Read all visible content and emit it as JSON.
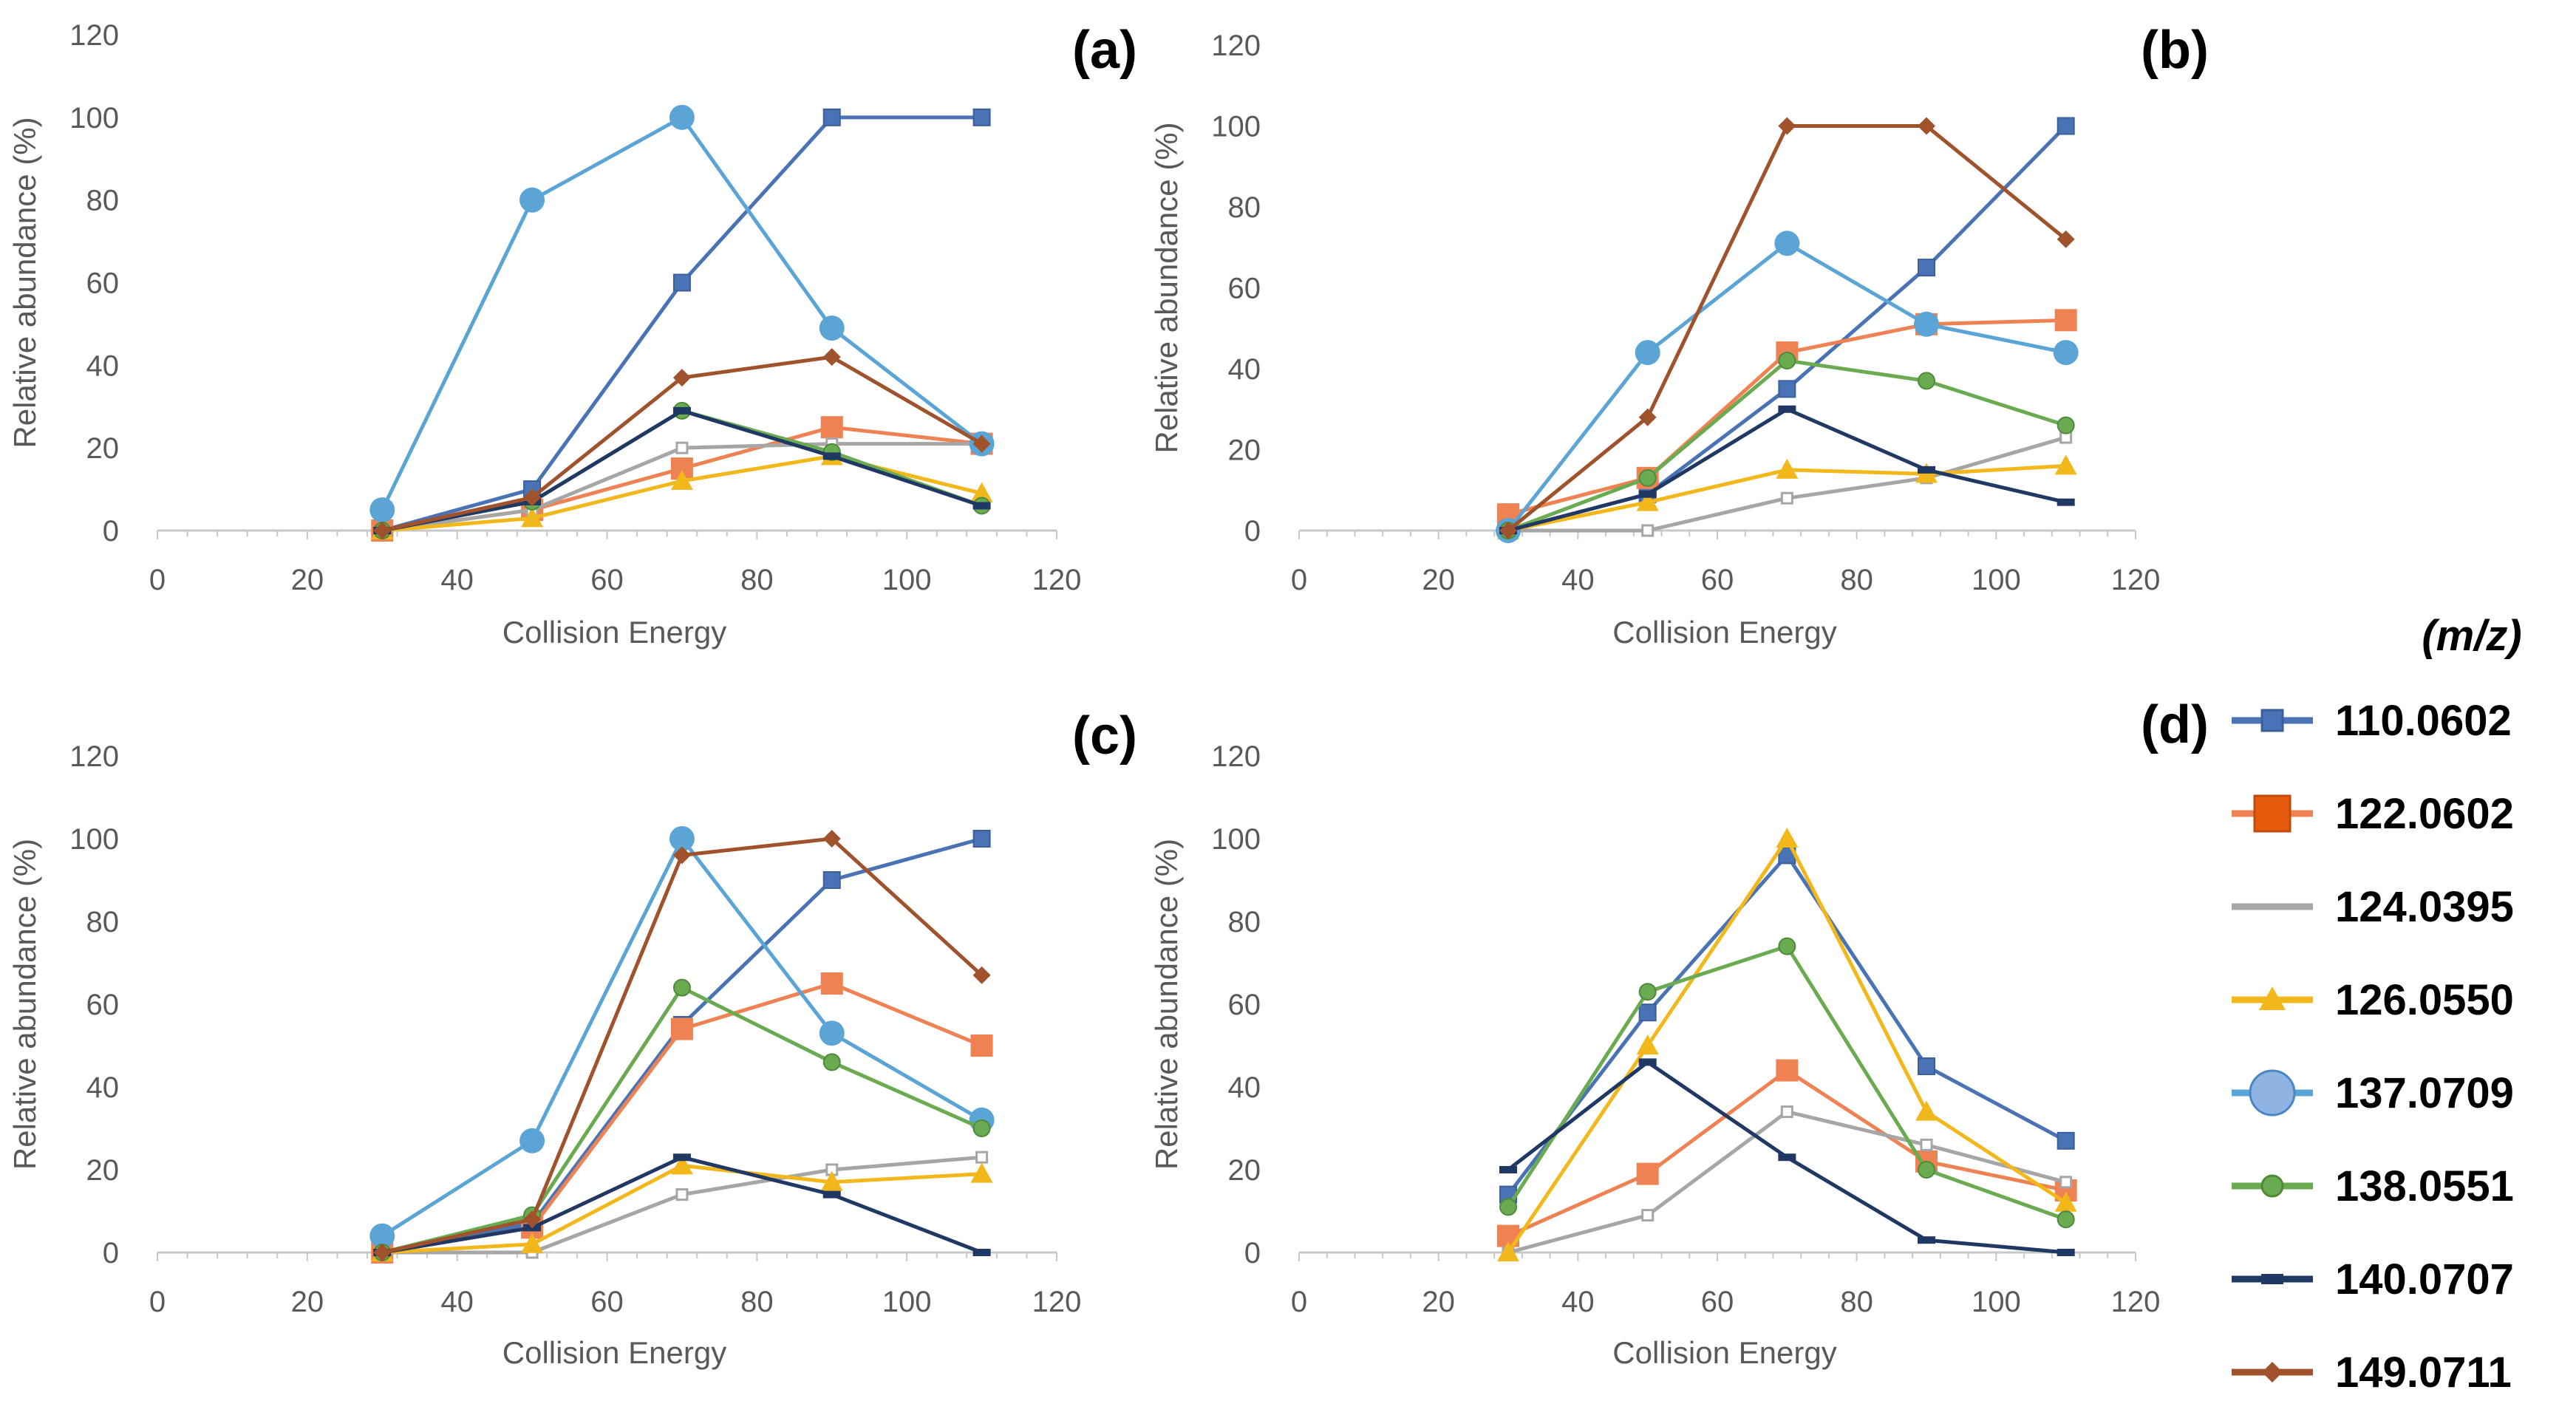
{
  "legend": {
    "title": "(m/z)",
    "items": [
      {
        "label": "110.0602",
        "color": "#4a73b5",
        "marker": "square"
      },
      {
        "label": "122.0602",
        "color": "#ee8252",
        "marker": "square-large"
      },
      {
        "label": "124.0395",
        "color": "#a6a6a6",
        "marker": "none"
      },
      {
        "label": "126.0550",
        "color": "#f2b81b",
        "marker": "triangle"
      },
      {
        "label": "137.0709",
        "color": "#5ba5d6",
        "marker": "circle"
      },
      {
        "label": "138.0551",
        "color": "#6aab52",
        "marker": "circle-small"
      },
      {
        "label": "140.0707",
        "color": "#1f3864",
        "marker": "dash"
      },
      {
        "label": "149.0711",
        "color": "#a0522d",
        "marker": "diamond"
      }
    ]
  },
  "chart_data": [
    {
      "panel": "(a)",
      "type": "line",
      "xlabel": "Collision Energy",
      "ylabel": "Relative abundance (%)",
      "xlim": [
        0,
        120
      ],
      "ylim": [
        0,
        120
      ],
      "xticks": [
        0,
        20,
        40,
        60,
        80,
        100,
        120
      ],
      "yticks": [
        0,
        20,
        40,
        60,
        80,
        100,
        120
      ],
      "x": [
        30,
        50,
        70,
        90,
        110
      ],
      "series": [
        {
          "name": "110.0602",
          "values": [
            0,
            10,
            60,
            100,
            100
          ]
        },
        {
          "name": "122.0602",
          "values": [
            0,
            5,
            15,
            25,
            21
          ]
        },
        {
          "name": "124.0395",
          "values": [
            0,
            5,
            20,
            21,
            21
          ]
        },
        {
          "name": "126.0550",
          "values": [
            0,
            3,
            12,
            18,
            9
          ]
        },
        {
          "name": "137.0709",
          "values": [
            5,
            80,
            100,
            49,
            21
          ]
        },
        {
          "name": "138.0551",
          "values": [
            0,
            7,
            29,
            19,
            6
          ]
        },
        {
          "name": "140.0707",
          "values": [
            0,
            7,
            29,
            18,
            6
          ]
        },
        {
          "name": "149.0711",
          "values": [
            0,
            8,
            37,
            42,
            21
          ]
        }
      ]
    },
    {
      "panel": "(b)",
      "type": "line",
      "xlabel": "Collision Energy",
      "ylabel": "Relative abundance (%)",
      "xlim": [
        0,
        120
      ],
      "ylim": [
        0,
        120
      ],
      "xticks": [
        0,
        20,
        40,
        60,
        80,
        100,
        120
      ],
      "yticks": [
        0,
        20,
        40,
        60,
        80,
        100,
        120
      ],
      "x": [
        30,
        50,
        70,
        90,
        110
      ],
      "series": [
        {
          "name": "110.0602",
          "values": [
            0,
            9,
            35,
            65,
            100
          ]
        },
        {
          "name": "122.0602",
          "values": [
            4,
            13,
            44,
            51,
            52
          ]
        },
        {
          "name": "124.0395",
          "values": [
            0,
            0,
            8,
            13,
            23
          ]
        },
        {
          "name": "126.0550",
          "values": [
            0,
            7,
            15,
            14,
            16
          ]
        },
        {
          "name": "137.0709",
          "values": [
            0,
            44,
            71,
            51,
            44
          ]
        },
        {
          "name": "138.0551",
          "values": [
            0,
            13,
            42,
            37,
            26
          ]
        },
        {
          "name": "140.0707",
          "values": [
            0,
            9,
            30,
            15,
            7
          ]
        },
        {
          "name": "149.0711",
          "values": [
            0,
            28,
            100,
            100,
            72
          ]
        }
      ]
    },
    {
      "panel": "(c)",
      "type": "line",
      "xlabel": "Collision Energy",
      "ylabel": "Relative abundance (%)",
      "xlim": [
        0,
        120
      ],
      "ylim": [
        0,
        120
      ],
      "xticks": [
        0,
        20,
        40,
        60,
        80,
        100,
        120
      ],
      "yticks": [
        0,
        20,
        40,
        60,
        80,
        100,
        120
      ],
      "x": [
        30,
        50,
        70,
        90,
        110
      ],
      "series": [
        {
          "name": "110.0602",
          "values": [
            0,
            7,
            55,
            90,
            100
          ]
        },
        {
          "name": "122.0602",
          "values": [
            0,
            6,
            54,
            65,
            50
          ]
        },
        {
          "name": "124.0395",
          "values": [
            0,
            0,
            14,
            20,
            23
          ]
        },
        {
          "name": "126.0550",
          "values": [
            0,
            2,
            21,
            17,
            19
          ]
        },
        {
          "name": "137.0709",
          "values": [
            4,
            27,
            100,
            53,
            32
          ]
        },
        {
          "name": "138.0551",
          "values": [
            0,
            9,
            64,
            46,
            30
          ]
        },
        {
          "name": "140.0707",
          "values": [
            0,
            6,
            23,
            14,
            0
          ]
        },
        {
          "name": "149.0711",
          "values": [
            0,
            8,
            96,
            100,
            67
          ]
        }
      ]
    },
    {
      "panel": "(d)",
      "type": "line",
      "xlabel": "Collision Energy",
      "ylabel": "Relative abundance (%)",
      "xlim": [
        0,
        120
      ],
      "ylim": [
        0,
        120
      ],
      "xticks": [
        0,
        20,
        40,
        60,
        80,
        100,
        120
      ],
      "yticks": [
        0,
        20,
        40,
        60,
        80,
        100,
        120
      ],
      "x": [
        30,
        50,
        70,
        90,
        110
      ],
      "series": [
        {
          "name": "110.0602",
          "values": [
            14,
            58,
            96,
            45,
            27
          ]
        },
        {
          "name": "122.0602",
          "values": [
            4,
            19,
            44,
            22,
            15
          ]
        },
        {
          "name": "124.0395",
          "values": [
            0,
            9,
            34,
            26,
            17
          ]
        },
        {
          "name": "126.0550",
          "values": [
            0,
            50,
            100,
            34,
            12
          ]
        },
        {
          "name": "138.0551",
          "values": [
            11,
            63,
            74,
            20,
            8
          ]
        },
        {
          "name": "140.0707",
          "values": [
            20,
            46,
            23,
            3,
            0
          ]
        }
      ]
    }
  ]
}
